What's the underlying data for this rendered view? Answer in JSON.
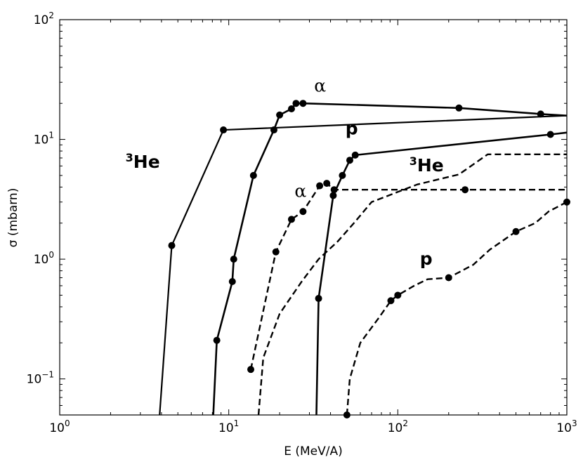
{
  "chart_data": {
    "type": "line",
    "title": "",
    "xlabel": "E (MeV/A)",
    "ylabel": "σ (mbarn)",
    "xscale": "log",
    "yscale": "log",
    "xlim": [
      1,
      1000
    ],
    "ylim": [
      0.05,
      100
    ],
    "grid": false,
    "legend": "none",
    "x_ticks": [
      {
        "value": 1,
        "base": "10",
        "exp": "0"
      },
      {
        "value": 10,
        "base": "10",
        "exp": "1"
      },
      {
        "value": 100,
        "base": "10",
        "exp": "2"
      },
      {
        "value": 1000,
        "base": "10",
        "exp": "3"
      }
    ],
    "y_ticks": [
      {
        "value": 0.1,
        "base": "10",
        "exp": "−1"
      },
      {
        "value": 1,
        "base": "10",
        "exp": "0"
      },
      {
        "value": 10,
        "base": "10",
        "exp": "1"
      },
      {
        "value": 100,
        "base": "10",
        "exp": "2"
      }
    ],
    "series": [
      {
        "style": "solid",
        "width": 2.2,
        "points": [
          [
            3.9,
            0.05
          ],
          [
            4.6,
            1.3
          ],
          [
            9.3,
            12
          ],
          [
            1000,
            15.8
          ]
        ],
        "markers": [
          [
            4.6,
            1.3
          ],
          [
            9.3,
            12
          ]
        ]
      },
      {
        "style": "solid",
        "width": 2.6,
        "points": [
          [
            8.1,
            0.05
          ],
          [
            8.5,
            0.21
          ],
          [
            10.5,
            0.65
          ],
          [
            10.7,
            1.0
          ],
          [
            14,
            5
          ],
          [
            18.5,
            12
          ],
          [
            20,
            16
          ],
          [
            23.5,
            18
          ],
          [
            25,
            20
          ],
          [
            27.5,
            20
          ],
          [
            230,
            18.3
          ],
          [
            700,
            16.3
          ],
          [
            1000,
            15.8
          ]
        ],
        "markers": [
          [
            8.5,
            0.21
          ],
          [
            10.5,
            0.65
          ],
          [
            10.7,
            1.0
          ],
          [
            14,
            5
          ],
          [
            18.5,
            12
          ],
          [
            20,
            16
          ],
          [
            23.5,
            18
          ],
          [
            25,
            20
          ],
          [
            27.5,
            20
          ],
          [
            230,
            18.3
          ],
          [
            700,
            16.3
          ]
        ]
      },
      {
        "style": "solid",
        "width": 2.6,
        "points": [
          [
            33,
            0.05
          ],
          [
            34,
            0.47
          ],
          [
            41.5,
            3.4
          ],
          [
            47,
            5
          ],
          [
            52,
            6.7
          ],
          [
            56,
            7.4
          ],
          [
            800,
            11
          ],
          [
            1000,
            11.4
          ]
        ],
        "markers": [
          [
            34,
            0.47
          ],
          [
            41.5,
            3.4
          ],
          [
            47,
            5
          ],
          [
            52,
            6.7
          ],
          [
            56,
            7.4
          ],
          [
            800,
            11
          ]
        ]
      },
      {
        "style": "dashed",
        "width": 2.4,
        "points": [
          [
            13.5,
            0.12
          ],
          [
            19,
            1.15
          ],
          [
            23.5,
            2.15
          ],
          [
            27.5,
            2.5
          ],
          [
            34.5,
            4.1
          ],
          [
            38,
            4.3
          ],
          [
            42,
            3.8
          ],
          [
            250,
            3.8
          ],
          [
            1000,
            3.8
          ]
        ],
        "markers": [
          [
            13.5,
            0.12
          ],
          [
            19,
            1.15
          ],
          [
            23.5,
            2.15
          ],
          [
            27.5,
            2.5
          ],
          [
            34.5,
            4.1
          ],
          [
            38,
            4.3
          ],
          [
            42,
            3.8
          ],
          [
            250,
            3.8
          ]
        ]
      },
      {
        "style": "dashed",
        "width": 2.4,
        "points": [
          [
            15,
            0.05
          ],
          [
            16,
            0.15
          ],
          [
            20,
            0.35
          ],
          [
            27,
            0.65
          ],
          [
            34,
            1.0
          ],
          [
            44,
            1.4
          ],
          [
            55,
            2.0
          ],
          [
            70,
            3.0
          ],
          [
            130,
            4.2
          ],
          [
            230,
            5.1
          ],
          [
            340,
            7.5
          ],
          [
            1000,
            7.5
          ]
        ],
        "markers": []
      },
      {
        "style": "dashed",
        "width": 2.4,
        "points": [
          [
            50,
            0.05
          ],
          [
            52,
            0.1
          ],
          [
            60,
            0.2
          ],
          [
            78,
            0.33
          ],
          [
            91,
            0.45
          ],
          [
            100,
            0.5
          ],
          [
            125,
            0.6
          ],
          [
            150,
            0.68
          ],
          [
            200,
            0.7
          ],
          [
            280,
            0.9
          ],
          [
            350,
            1.2
          ],
          [
            500,
            1.7
          ],
          [
            650,
            2.0
          ],
          [
            780,
            2.5
          ],
          [
            1000,
            3.0
          ]
        ],
        "markers": [
          [
            50,
            0.05
          ],
          [
            91,
            0.45
          ],
          [
            100,
            0.5
          ],
          [
            200,
            0.7
          ],
          [
            500,
            1.7
          ],
          [
            1000,
            3.0
          ]
        ]
      }
    ],
    "annotations": [
      {
        "id": "alpha-top",
        "sup": "",
        "text": "α",
        "x": 32,
        "y": 25,
        "font": "greek"
      },
      {
        "id": "he3-left",
        "sup": "3",
        "text": "He",
        "x": 2.45,
        "y": 5.8,
        "font": "bold"
      },
      {
        "id": "p-top",
        "sup": "",
        "text": "p",
        "x": 49,
        "y": 11,
        "font": "bold"
      },
      {
        "id": "he3-right",
        "sup": "3",
        "text": "He",
        "x": 117,
        "y": 5.4,
        "font": "bold"
      },
      {
        "id": "alpha-mid",
        "sup": "",
        "text": "α",
        "x": 24.5,
        "y": 3.3,
        "font": "greek"
      },
      {
        "id": "p-bottom",
        "sup": "",
        "text": "p",
        "x": 135,
        "y": 0.9,
        "font": "bold"
      }
    ]
  }
}
